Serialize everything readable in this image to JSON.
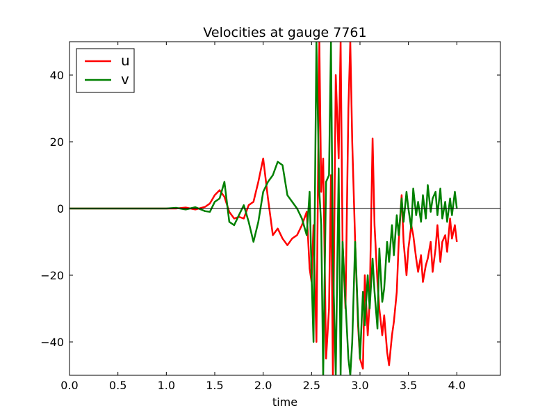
{
  "chart_data": {
    "type": "line",
    "title": "Velocities at gauge 7761",
    "xlabel": "time",
    "ylabel": "",
    "xlim": [
      0.0,
      4.45
    ],
    "ylim": [
      -50,
      50
    ],
    "xticks": [
      0.0,
      0.5,
      1.0,
      1.5,
      2.0,
      2.5,
      3.0,
      3.5,
      4.0
    ],
    "xtick_labels": [
      "0.0",
      "0.5",
      "1.0",
      "1.5",
      "2.0",
      "2.5",
      "3.0",
      "3.5",
      "4.0"
    ],
    "yticks": [
      40,
      20,
      0,
      -20,
      -40
    ],
    "ytick_labels": [
      "40",
      "20",
      "0",
      "−20",
      "−40"
    ],
    "reference_line": {
      "y": 0,
      "color": "#000000"
    },
    "grid": false,
    "legend": "top-left",
    "series": [
      {
        "name": "u",
        "color": "#ff0000",
        "x": [
          0.0,
          1.0,
          1.1,
          1.2,
          1.3,
          1.4,
          1.45,
          1.5,
          1.55,
          1.6,
          1.65,
          1.7,
          1.75,
          1.8,
          1.85,
          1.9,
          1.95,
          2.0,
          2.05,
          2.1,
          2.15,
          2.2,
          2.25,
          2.3,
          2.35,
          2.4,
          2.45,
          2.48,
          2.5,
          2.52,
          2.55,
          2.58,
          2.6,
          2.62,
          2.65,
          2.68,
          2.7,
          2.72,
          2.75,
          2.78,
          2.8,
          2.82,
          2.85,
          2.88,
          2.9,
          2.92,
          2.95,
          2.98,
          3.0,
          3.03,
          3.05,
          3.08,
          3.1,
          3.13,
          3.15,
          3.18,
          3.2,
          3.23,
          3.25,
          3.28,
          3.3,
          3.33,
          3.35,
          3.38,
          3.4,
          3.43,
          3.45,
          3.48,
          3.5,
          3.53,
          3.55,
          3.58,
          3.6,
          3.63,
          3.65,
          3.68,
          3.7,
          3.73,
          3.75,
          3.78,
          3.8,
          3.83,
          3.85,
          3.88,
          3.9,
          3.93,
          3.95,
          3.98,
          4.0
        ],
        "y": [
          0,
          0,
          0,
          0.3,
          -0.3,
          0.5,
          1.5,
          4,
          5.5,
          3.5,
          -1,
          -3,
          -2.5,
          -3,
          1,
          2,
          8,
          15,
          3,
          -8,
          -6,
          -9,
          -11,
          -9,
          -8,
          -5,
          -1,
          -18,
          -22,
          -5,
          -40,
          50,
          5,
          15,
          -45,
          -30,
          10,
          -50,
          40,
          15,
          50,
          -10,
          -30,
          30,
          50,
          20,
          -10,
          -35,
          -45,
          -48,
          -20,
          -38,
          -28,
          21,
          -5,
          -22,
          -30,
          -38,
          -32,
          -43,
          -47,
          -38,
          -34,
          -25,
          -10,
          4,
          -10,
          -20,
          -12,
          -5,
          -8,
          -15,
          -19,
          -14,
          -22,
          -17,
          -15,
          -10,
          -19,
          -12,
          -5,
          -16,
          -10,
          -8,
          -13,
          -3,
          -9,
          -5,
          -10
        ]
      },
      {
        "name": "v",
        "color": "#008000",
        "x": [
          0.0,
          1.0,
          1.1,
          1.2,
          1.3,
          1.4,
          1.45,
          1.5,
          1.55,
          1.6,
          1.65,
          1.7,
          1.75,
          1.8,
          1.85,
          1.9,
          1.95,
          2.0,
          2.05,
          2.1,
          2.15,
          2.2,
          2.25,
          2.3,
          2.35,
          2.4,
          2.45,
          2.48,
          2.5,
          2.52,
          2.55,
          2.58,
          2.6,
          2.62,
          2.65,
          2.68,
          2.7,
          2.72,
          2.75,
          2.78,
          2.8,
          2.82,
          2.85,
          2.88,
          2.9,
          2.92,
          2.95,
          2.98,
          3.0,
          3.03,
          3.05,
          3.08,
          3.1,
          3.13,
          3.15,
          3.18,
          3.2,
          3.23,
          3.25,
          3.28,
          3.3,
          3.33,
          3.35,
          3.38,
          3.4,
          3.43,
          3.45,
          3.48,
          3.5,
          3.53,
          3.55,
          3.58,
          3.6,
          3.63,
          3.65,
          3.68,
          3.7,
          3.73,
          3.75,
          3.78,
          3.8,
          3.83,
          3.85,
          3.88,
          3.9,
          3.93,
          3.95,
          3.98,
          4.0
        ],
        "y": [
          0,
          0,
          0.2,
          -0.3,
          0.4,
          -0.8,
          -1,
          2,
          3,
          8,
          -4,
          -5,
          -2,
          1,
          -4,
          -10,
          -4,
          5,
          8,
          10,
          14,
          13,
          4,
          2,
          0,
          -3,
          -8,
          5,
          -20,
          -40,
          50,
          5,
          -5,
          -50,
          8,
          10,
          50,
          -15,
          -50,
          12,
          -50,
          -10,
          -28,
          -45,
          -50,
          -40,
          -10,
          -33,
          -45,
          -25,
          -35,
          -20,
          -30,
          -15,
          -25,
          -36,
          -12,
          -28,
          -24,
          -10,
          -16,
          -5,
          -14,
          -2,
          -8,
          3,
          -4,
          5,
          0,
          -6,
          6,
          -2,
          2,
          -4,
          4,
          -3,
          7,
          -1,
          3,
          5,
          -2,
          6,
          -3,
          2,
          -4,
          3,
          -2,
          5,
          0
        ]
      }
    ]
  }
}
